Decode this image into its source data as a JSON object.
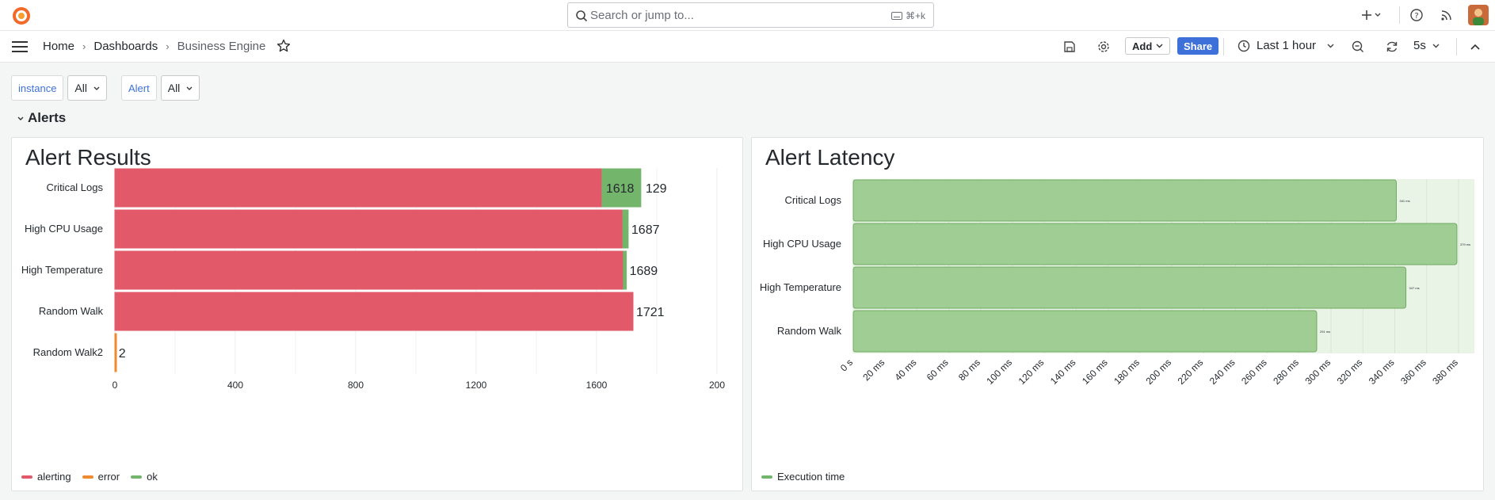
{
  "topbar": {
    "search_placeholder": "Search or jump to...",
    "search_shortcut": "⌘+k"
  },
  "breadcrumb": [
    "Home",
    "Dashboards",
    "Business Engine"
  ],
  "toolbar": {
    "add_label": "Add",
    "share_label": "Share",
    "time_range": "Last 1 hour",
    "refresh_interval": "5s"
  },
  "variables": [
    {
      "label": "instance",
      "value": "All"
    },
    {
      "label": "Alert",
      "value": "All"
    }
  ],
  "row": {
    "title": "Alerts"
  },
  "colors": {
    "alerting": "#e25a6a",
    "error": "#f08a30",
    "ok": "#74b56c",
    "latency": "#9fcd94"
  },
  "chart_data": [
    {
      "type": "bar",
      "orientation": "horizontal",
      "stacked": true,
      "title": "Alert Results",
      "categories": [
        "Critical Logs",
        "High CPU Usage",
        "High Temperature",
        "Random Walk",
        "Random Walk2"
      ],
      "series": [
        {
          "name": "alerting",
          "values": [
            1618,
            1687,
            1689,
            1721,
            0
          ]
        },
        {
          "name": "error",
          "values": [
            0,
            0,
            0,
            0,
            2
          ]
        },
        {
          "name": "ok",
          "values": [
            129,
            18,
            10,
            0,
            0
          ]
        }
      ],
      "value_labels": [
        [
          "1618",
          "129"
        ],
        [
          "1687"
        ],
        [
          "1689"
        ],
        [
          "1721"
        ],
        [
          "2"
        ]
      ],
      "x_ticks": [
        "0",
        "400",
        "800",
        "1200",
        "1600",
        "200"
      ],
      "xlim": [
        0,
        2000
      ],
      "legend": "bottom-left"
    },
    {
      "type": "bar",
      "orientation": "horizontal",
      "title": "Alert Latency",
      "categories": [
        "Critical Logs",
        "High CPU Usage",
        "High Temperature",
        "Random Walk"
      ],
      "series": [
        {
          "name": "Execution time",
          "values": [
            341,
            379,
            347,
            291
          ]
        }
      ],
      "value_labels": [
        "341 ms",
        "379 ms",
        "347 ms",
        "291 ms"
      ],
      "x_ticks": [
        "0 s",
        "20 ms",
        "40 ms",
        "60 ms",
        "80 ms",
        "100 ms",
        "120 ms",
        "140 ms",
        "160 ms",
        "180 ms",
        "200 ms",
        "220 ms",
        "240 ms",
        "260 ms",
        "280 ms",
        "300 ms",
        "320 ms",
        "340 ms",
        "360 ms",
        "380 ms"
      ],
      "xlim": [
        0,
        390
      ],
      "legend": "bottom-left"
    }
  ]
}
